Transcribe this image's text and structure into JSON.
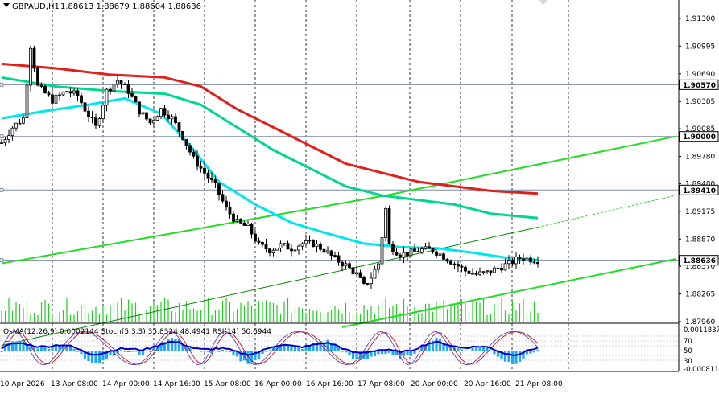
{
  "header": {
    "symbol_label": "GBPAUD,H1",
    "ohlc": "1.88613 1.88679 1.88604 1.88636"
  },
  "indicator_label": "OsMA(12,26,9) 0.0002144  Stoch(5,3,3) 35.8324 48.4941  RSI(14) 50.6944",
  "colors": {
    "candle": "#000000",
    "ema_fast": "#00e5ee",
    "ema_mid": "#00d68f",
    "ema_slow": "#e0201b",
    "channel": "#22dd22",
    "channel_mid": "#008800",
    "hline": "#7b8aa8",
    "osma": "#22a8ee",
    "stoch_main": "#0000c8",
    "stoch_signal": "#c01010",
    "volume": "#22cc22"
  },
  "chart_data": {
    "type": "candlestick",
    "symbol": "GBPAUD",
    "timeframe": "H1",
    "ylim": [
      1.8796,
      1.9145
    ],
    "y_ticks": [
      "1.91300",
      "1.90995",
      "1.90690",
      "1.90385",
      "1.90085",
      "1.89780",
      "1.89480",
      "1.89175",
      "1.88870",
      "1.88570",
      "1.88265",
      "1.87960"
    ],
    "price_tags": [
      {
        "label": "1.90570",
        "value": 1.9057
      },
      {
        "label": "1.90000",
        "value": 1.9
      },
      {
        "label": "1.89410",
        "value": 1.8941
      },
      {
        "label": "1.88636",
        "value": 1.88636
      }
    ],
    "x_tick_labels": [
      "10 Apr 2026",
      "13 Apr 08:00",
      "14 Apr 00:00",
      "14 Apr 16:00",
      "15 Apr 08:00",
      "16 Apr 00:00",
      "16 Apr 16:00",
      "17 Apr 08:00",
      "20 Apr 00:00",
      "20 Apr 16:00",
      "21 Apr 08:00"
    ],
    "close_path": [
      [
        0,
        1.8993
      ],
      [
        3,
        1.901
      ],
      [
        6,
        1.902
      ],
      [
        8,
        1.91
      ],
      [
        10,
        1.9055
      ],
      [
        14,
        1.904
      ],
      [
        18,
        1.905
      ],
      [
        21,
        1.9045
      ],
      [
        23,
        1.903
      ],
      [
        26,
        1.901
      ],
      [
        29,
        1.905
      ],
      [
        32,
        1.9062
      ],
      [
        35,
        1.905
      ],
      [
        38,
        1.9028
      ],
      [
        41,
        1.9015
      ],
      [
        44,
        1.903
      ],
      [
        47,
        1.902
      ],
      [
        50,
        1.9
      ],
      [
        53,
        1.8975
      ],
      [
        56,
        1.896
      ],
      [
        59,
        1.8945
      ],
      [
        62,
        1.892
      ],
      [
        65,
        1.8905
      ],
      [
        68,
        1.89
      ],
      [
        71,
        1.888
      ],
      [
        74,
        1.8875
      ],
      [
        77,
        1.888
      ],
      [
        80,
        1.8877
      ],
      [
        83,
        1.8882
      ],
      [
        86,
        1.8882
      ],
      [
        89,
        1.8875
      ],
      [
        92,
        1.8865
      ],
      [
        95,
        1.8858
      ],
      [
        98,
        1.8848
      ],
      [
        100,
        1.8835
      ],
      [
        102,
        1.8845
      ],
      [
        104,
        1.886
      ],
      [
        106,
        1.892
      ],
      [
        107,
        1.888
      ],
      [
        110,
        1.887
      ],
      [
        113,
        1.8872
      ],
      [
        116,
        1.8875
      ],
      [
        119,
        1.8875
      ],
      [
        122,
        1.8868
      ],
      [
        125,
        1.886
      ],
      [
        128,
        1.8852
      ],
      [
        131,
        1.8848
      ],
      [
        134,
        1.885
      ],
      [
        137,
        1.8855
      ],
      [
        140,
        1.886
      ],
      [
        143,
        1.8866
      ],
      [
        146,
        1.8865
      ],
      [
        148,
        1.8864
      ]
    ],
    "ema_fast": [
      [
        0,
        1.902
      ],
      [
        12,
        1.9028
      ],
      [
        24,
        1.9035
      ],
      [
        34,
        1.9042
      ],
      [
        44,
        1.9025
      ],
      [
        52,
        1.899
      ],
      [
        60,
        1.895
      ],
      [
        70,
        1.8925
      ],
      [
        80,
        1.8905
      ],
      [
        90,
        1.8893
      ],
      [
        100,
        1.8882
      ],
      [
        110,
        1.8878
      ],
      [
        120,
        1.8877
      ],
      [
        130,
        1.8872
      ],
      [
        140,
        1.8866
      ],
      [
        148,
        1.8864
      ]
    ],
    "ema_mid": [
      [
        0,
        1.9065
      ],
      [
        15,
        1.9055
      ],
      [
        30,
        1.905
      ],
      [
        45,
        1.9047
      ],
      [
        55,
        1.9035
      ],
      [
        65,
        1.901
      ],
      [
        75,
        1.8985
      ],
      [
        85,
        1.8965
      ],
      [
        95,
        1.8945
      ],
      [
        105,
        1.8935
      ],
      [
        115,
        1.893
      ],
      [
        125,
        1.8925
      ],
      [
        135,
        1.8915
      ],
      [
        148,
        1.891
      ]
    ],
    "ema_slow": [
      [
        0,
        1.908
      ],
      [
        15,
        1.9075
      ],
      [
        30,
        1.9068
      ],
      [
        45,
        1.9065
      ],
      [
        55,
        1.9055
      ],
      [
        65,
        1.903
      ],
      [
        75,
        1.901
      ],
      [
        85,
        1.899
      ],
      [
        95,
        1.897
      ],
      [
        105,
        1.896
      ],
      [
        115,
        1.895
      ],
      [
        125,
        1.8945
      ],
      [
        135,
        1.894
      ],
      [
        148,
        1.8937
      ]
    ],
    "channel_upper": [
      [
        0,
        1.886
      ],
      [
        106,
        1.8935
      ],
      [
        186,
        1.9
      ]
    ],
    "channel_lower": [
      [
        94,
        1.879
      ],
      [
        186,
        1.8865
      ]
    ],
    "channel_mid": [
      [
        0,
        1.877
      ],
      [
        148,
        1.89
      ]
    ],
    "channel_mid_ext": [
      [
        148,
        1.89
      ],
      [
        186,
        1.8935
      ]
    ],
    "horizontal_levels": [
      1.9057,
      1.9,
      1.8941,
      1.88636
    ],
    "n_bars": 148
  }
}
